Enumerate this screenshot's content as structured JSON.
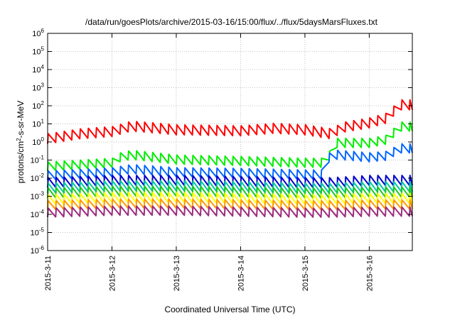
{
  "chart_data": {
    "type": "line",
    "title": "/data/run/goesPlots/archive/2015-03-16/15:00/flux/../flux/5daysMarsFluxes.txt",
    "xlabel": "Coordinated Universal Time (UTC)",
    "ylabel_parts": {
      "pre": "protons/cm",
      "sup": "2",
      "post": "-s-sr-MeV"
    },
    "y_scale": "log",
    "ylim": [
      1e-06,
      1000000.0
    ],
    "y_ticks": [
      {
        "base": "10",
        "exp": "-6"
      },
      {
        "base": "10",
        "exp": "-5"
      },
      {
        "base": "10",
        "exp": "-4"
      },
      {
        "base": "10",
        "exp": "-3"
      },
      {
        "base": "10",
        "exp": "-2"
      },
      {
        "base": "10",
        "exp": "-1"
      },
      {
        "base": "10",
        "exp": "0"
      },
      {
        "base": "10",
        "exp": "1"
      },
      {
        "base": "10",
        "exp": "2"
      },
      {
        "base": "10",
        "exp": "3"
      },
      {
        "base": "10",
        "exp": "4"
      },
      {
        "base": "10",
        "exp": "5"
      },
      {
        "base": "10",
        "exp": "6"
      }
    ],
    "x_ticks": [
      "2015-3-11",
      "2015-3-12",
      "2015-3-13",
      "2015-3-14",
      "2015-3-15",
      "2015-3-16"
    ],
    "x_tick_days": [
      0,
      1,
      2,
      3,
      4,
      5
    ],
    "xlim_days": [
      0,
      5.67
    ],
    "grid": true,
    "legend": "none",
    "series": [
      {
        "color": "#ff0000",
        "points": [
          [
            0.0,
            0.8
          ],
          [
            0.5,
            1.5
          ],
          [
            1.0,
            2.0
          ],
          [
            1.3,
            4.0
          ],
          [
            2.0,
            2.5
          ],
          [
            3.0,
            2.2
          ],
          [
            3.5,
            3.0
          ],
          [
            4.0,
            2.5
          ],
          [
            4.4,
            1.5
          ],
          [
            4.6,
            3.5
          ],
          [
            5.0,
            6.0
          ],
          [
            5.3,
            12.0
          ],
          [
            5.45,
            60.0
          ],
          [
            5.67,
            60.0
          ]
        ],
        "sawtooth_amp": 0.55
      },
      {
        "color": "#00ee00",
        "points": [
          [
            0.0,
            0.025
          ],
          [
            1.0,
            0.04
          ],
          [
            1.05,
            0.07
          ],
          [
            1.3,
            0.11
          ],
          [
            2.0,
            0.06
          ],
          [
            3.0,
            0.05
          ],
          [
            4.0,
            0.04
          ],
          [
            4.35,
            0.04
          ],
          [
            4.42,
            0.5
          ],
          [
            5.0,
            0.5
          ],
          [
            5.3,
            0.8
          ],
          [
            5.45,
            4.0
          ],
          [
            5.67,
            4.0
          ]
        ],
        "sawtooth_amp": 0.5
      },
      {
        "color": "#0066ff",
        "points": [
          [
            0.0,
            0.008
          ],
          [
            1.0,
            0.012
          ],
          [
            1.3,
            0.018
          ],
          [
            2.0,
            0.012
          ],
          [
            3.0,
            0.011
          ],
          [
            4.0,
            0.009
          ],
          [
            4.35,
            0.009
          ],
          [
            4.38,
            0.12
          ],
          [
            5.0,
            0.08
          ],
          [
            5.3,
            0.1
          ],
          [
            5.45,
            0.25
          ],
          [
            5.67,
            0.25
          ]
        ],
        "sawtooth_amp": 0.5
      },
      {
        "color": "#0000cc",
        "points": [
          [
            0.0,
            0.003
          ],
          [
            1.0,
            0.004
          ],
          [
            2.0,
            0.004
          ],
          [
            3.0,
            0.0035
          ],
          [
            4.0,
            0.003
          ],
          [
            4.4,
            0.003
          ],
          [
            5.0,
            0.004
          ],
          [
            5.67,
            0.004
          ]
        ],
        "sawtooth_amp": 0.55
      },
      {
        "color": "#00c8a0",
        "points": [
          [
            0.0,
            0.0015
          ],
          [
            1.0,
            0.002
          ],
          [
            2.0,
            0.002
          ],
          [
            3.0,
            0.0018
          ],
          [
            4.0,
            0.0015
          ],
          [
            4.4,
            0.0015
          ],
          [
            5.0,
            0.0018
          ],
          [
            5.67,
            0.0018
          ]
        ],
        "sawtooth_amp": 0.55
      },
      {
        "color": "#1ec81e",
        "points": [
          [
            0.0,
            0.0008
          ],
          [
            1.0,
            0.001
          ],
          [
            2.0,
            0.001
          ],
          [
            3.0,
            0.0009
          ],
          [
            4.0,
            0.0008
          ],
          [
            4.4,
            0.0008
          ],
          [
            5.0,
            0.0009
          ],
          [
            5.67,
            0.0009
          ]
        ],
        "sawtooth_amp": 0.55
      },
      {
        "color": "#ffff00",
        "points": [
          [
            0.0,
            0.00035
          ],
          [
            1.0,
            0.00045
          ],
          [
            2.0,
            0.00045
          ],
          [
            3.0,
            0.0004
          ],
          [
            4.0,
            0.00035
          ],
          [
            4.4,
            0.00035
          ],
          [
            5.0,
            0.0004
          ],
          [
            5.67,
            0.0004
          ]
        ],
        "sawtooth_amp": 0.55
      },
      {
        "color": "#ff9900",
        "points": [
          [
            0.0,
            0.00018
          ],
          [
            1.0,
            0.00022
          ],
          [
            2.0,
            0.00022
          ],
          [
            3.0,
            0.0002
          ],
          [
            4.0,
            0.00018
          ],
          [
            4.4,
            0.00018
          ],
          [
            5.0,
            0.0002
          ],
          [
            5.67,
            0.0002
          ]
        ],
        "sawtooth_amp": 0.5
      },
      {
        "color": "#9b2a7d",
        "points": [
          [
            0.0,
            7e-05
          ],
          [
            1.0,
            9e-05
          ],
          [
            2.0,
            9e-05
          ],
          [
            3.0,
            8e-05
          ],
          [
            4.0,
            7e-05
          ],
          [
            4.4,
            7e-05
          ],
          [
            5.0,
            8e-05
          ],
          [
            5.67,
            8e-05
          ]
        ],
        "sawtooth_amp": 0.5
      }
    ]
  }
}
